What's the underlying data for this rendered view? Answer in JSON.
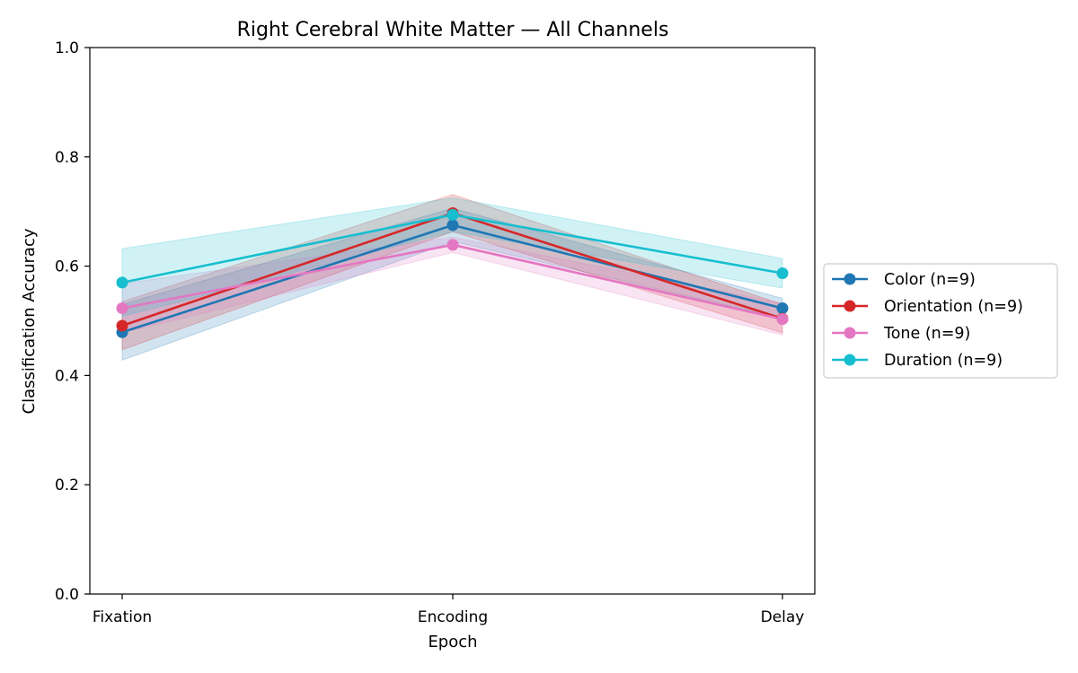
{
  "chart_data": {
    "type": "line",
    "title": "Right Cerebral White Matter — All Channels",
    "xlabel": "Epoch",
    "ylabel": "Classification Accuracy",
    "categories": [
      "Fixation",
      "Encoding",
      "Delay"
    ],
    "ylim": [
      0,
      1
    ],
    "yticks": [
      "0.0",
      "0.2",
      "0.4",
      "0.6",
      "0.8",
      "1.0"
    ],
    "grid": false,
    "legend_position": "outside-right",
    "series": [
      {
        "name": "Color (n=9)",
        "color": "#1f77b4",
        "values": [
          0.479,
          0.675,
          0.523
        ],
        "lower": [
          0.428,
          0.645,
          0.505
        ],
        "upper": [
          0.53,
          0.706,
          0.541
        ]
      },
      {
        "name": "Orientation (n=9)",
        "color": "#d62728",
        "values": [
          0.491,
          0.697,
          0.504
        ],
        "lower": [
          0.447,
          0.663,
          0.478
        ],
        "upper": [
          0.535,
          0.731,
          0.53
        ]
      },
      {
        "name": "Tone (n=9)",
        "color": "#e377c2",
        "values": [
          0.523,
          0.639,
          0.503
        ],
        "lower": [
          0.478,
          0.625,
          0.474
        ],
        "upper": [
          0.568,
          0.653,
          0.532
        ]
      },
      {
        "name": "Duration (n=9)",
        "color": "#17becf",
        "values": [
          0.57,
          0.694,
          0.587
        ],
        "lower": [
          0.508,
          0.663,
          0.56
        ],
        "upper": [
          0.632,
          0.725,
          0.614
        ]
      }
    ]
  }
}
